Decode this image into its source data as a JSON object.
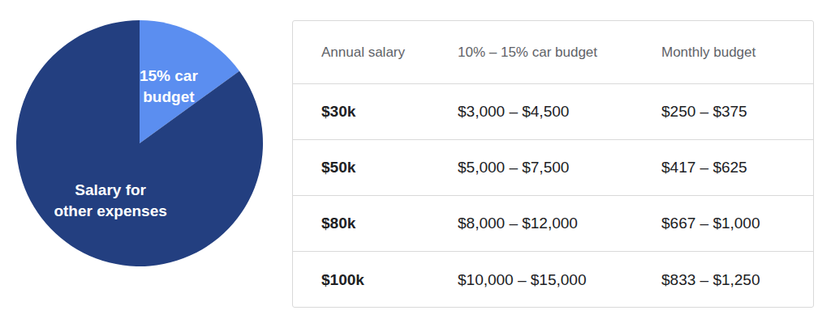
{
  "chart_data": {
    "type": "pie",
    "categories": [
      "15% car budget",
      "Salary for other expenses"
    ],
    "values": [
      15,
      85
    ],
    "colors": [
      "#5b8ef0",
      "#233f80"
    ]
  },
  "table": {
    "header": [
      "Annual salary",
      "10% – 15% car budget",
      "Monthly budget"
    ],
    "rows": [
      [
        "$30k",
        "$3,000 – $4,500",
        "$250 – $375"
      ],
      [
        "$50k",
        "$5,000 – $7,500",
        "$417 – $625"
      ],
      [
        "$80k",
        "$8,000 – $12,000",
        "$667 – $1,000"
      ],
      [
        "$100k",
        "$10,000 – $15,000",
        "$833 – $1,250"
      ]
    ]
  }
}
